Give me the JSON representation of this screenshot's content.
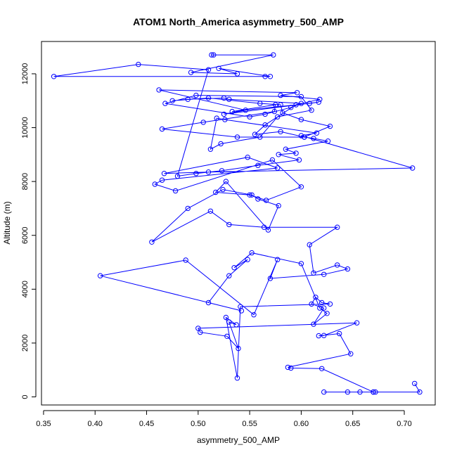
{
  "chart_data": {
    "type": "scatter",
    "title": "ATOM1 North_America asymmetry_500_AMP",
    "xlabel": "asymmetry_500_AMP",
    "ylabel": "Altitude (m)",
    "xlim": [
      0.348,
      0.73
    ],
    "ylim": [
      -300,
      13200
    ],
    "x_ticks": [
      0.35,
      0.4,
      0.45,
      0.5,
      0.55,
      0.6,
      0.65,
      0.7
    ],
    "x_tick_labels": [
      "0.35",
      "0.40",
      "0.45",
      "0.50",
      "0.55",
      "0.60",
      "0.65",
      "0.70"
    ],
    "y_ticks": [
      0,
      2000,
      4000,
      6000,
      8000,
      10000,
      12000
    ],
    "y_tick_labels": [
      "0",
      "2000",
      "4000",
      "6000",
      "8000",
      "10000",
      "12000"
    ],
    "grid": false,
    "legend": "none",
    "series_color": "#0000ff",
    "marker": "open-circle",
    "connected": true,
    "series": [
      {
        "x": [
          0.71,
          0.715,
          0.67,
          0.672,
          0.657,
          0.645,
          0.622,
          0.67,
          0.62,
          0.59,
          0.587,
          0.648,
          0.637,
          0.617,
          0.622,
          0.654,
          0.5,
          0.502,
          0.528,
          0.539,
          0.53,
          0.537,
          0.527,
          0.538,
          0.541,
          0.628,
          0.62,
          0.614,
          0.61,
          0.622,
          0.612,
          0.625,
          0.618,
          0.6,
          0.552,
          0.535,
          0.548,
          0.53,
          0.51,
          0.542,
          0.405,
          0.488,
          0.554,
          0.577,
          0.57,
          0.622,
          0.645,
          0.635,
          0.612,
          0.608,
          0.635,
          0.564,
          0.53,
          0.512,
          0.455,
          0.49,
          0.524,
          0.552,
          0.558,
          0.578,
          0.568,
          0.527,
          0.517,
          0.55,
          0.566,
          0.6,
          0.572,
          0.478,
          0.458,
          0.465,
          0.577,
          0.548,
          0.467,
          0.51,
          0.708,
          0.6,
          0.615,
          0.526,
          0.518,
          0.512,
          0.522,
          0.56,
          0.577,
          0.61,
          0.6,
          0.498,
          0.468,
          0.55,
          0.565,
          0.59,
          0.6,
          0.53,
          0.525,
          0.49,
          0.475,
          0.51,
          0.56,
          0.58,
          0.582,
          0.6,
          0.628,
          0.603,
          0.58,
          0.555,
          0.565,
          0.595,
          0.618,
          0.58,
          0.596,
          0.462,
          0.546,
          0.525,
          0.617,
          0.608,
          0.533,
          0.575,
          0.574,
          0.505,
          0.465,
          0.538,
          0.603,
          0.612,
          0.626,
          0.585,
          0.595,
          0.578,
          0.598,
          0.558,
          0.523,
          0.498,
          0.48,
          0.51,
          0.442,
          0.36,
          0.565,
          0.57,
          0.52,
          0.538,
          0.493,
          0.573,
          0.515,
          0.513
        ],
        "y": [
          500,
          180,
          180,
          180,
          180,
          180,
          180,
          180,
          1050,
          1070,
          1100,
          1600,
          2350,
          2270,
          2280,
          2750,
          2550,
          2400,
          2250,
          1800,
          2780,
          2680,
          2950,
          700,
          3350,
          3450,
          3500,
          3700,
          3450,
          3300,
          2700,
          3100,
          3300,
          4950,
          5350,
          4800,
          5100,
          4500,
          3500,
          3200,
          4500,
          5080,
          3050,
          5100,
          4400,
          4550,
          4750,
          4900,
          4600,
          5650,
          6300,
          6300,
          6400,
          6900,
          5750,
          7000,
          7700,
          7500,
          7350,
          7100,
          6200,
          8000,
          7600,
          7500,
          7300,
          7800,
          8800,
          7650,
          7900,
          8050,
          8500,
          8900,
          8300,
          8350,
          8500,
          9700,
          9800,
          10300,
          10350,
          9200,
          9400,
          9650,
          10400,
          10650,
          11150,
          11200,
          10900,
          10400,
          10500,
          10750,
          10900,
          11050,
          11100,
          11050,
          11000,
          11100,
          10900,
          10850,
          10550,
          10300,
          10050,
          9650,
          9850,
          9750,
          10100,
          10850,
          11050,
          11200,
          11300,
          11400,
          10650,
          10500,
          10950,
          10900,
          10600,
          10850,
          10600,
          10200,
          9950,
          9650,
          9650,
          9600,
          9500,
          9200,
          9050,
          9000,
          8800,
          8600,
          8400,
          8300,
          8200,
          12150,
          12350,
          11900,
          11900,
          11900,
          12200,
          12000,
          12050,
          12700,
          12700,
          12700
        ]
      }
    ]
  }
}
